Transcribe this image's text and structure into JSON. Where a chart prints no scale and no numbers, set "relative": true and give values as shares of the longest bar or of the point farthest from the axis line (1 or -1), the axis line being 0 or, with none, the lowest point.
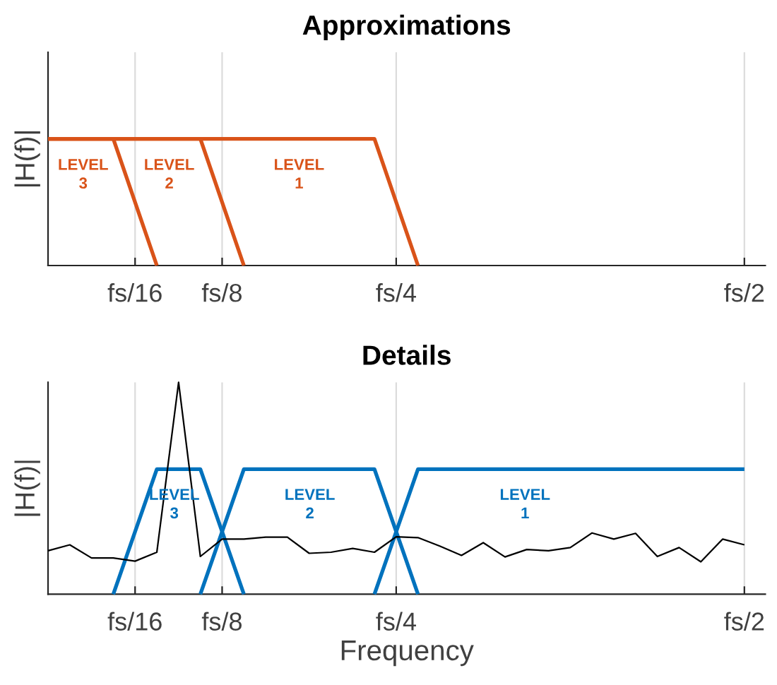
{
  "chart_data": [
    {
      "type": "line",
      "title": "Approximations",
      "ylabel": "|H(f)|",
      "relative": true,
      "categories": [
        null,
        null,
        null,
        null,
        "fs/16",
        null,
        null,
        null,
        "fs/8",
        null,
        null,
        null,
        null,
        null,
        null,
        null,
        "fs/4",
        null,
        null,
        null,
        null,
        null,
        null,
        null,
        null,
        null,
        null,
        null,
        null,
        null,
        null,
        null,
        "fs/2"
      ],
      "grid": "x",
      "tick_labels": "x",
      "line_style": "solid",
      "series": [
        {
          "color": "#d95319",
          "values": [
            1,
            1,
            1,
            1,
            0.5,
            0,
            null,
            null,
            null,
            null,
            null,
            null,
            null,
            null,
            null,
            null,
            null,
            null,
            null,
            null,
            null,
            null,
            null,
            null,
            null,
            null,
            null,
            null,
            null,
            null,
            null,
            null,
            null
          ]
        },
        {
          "color": "#d95319",
          "values": [
            1,
            1,
            1,
            1,
            1,
            1,
            1,
            1,
            0.5,
            0,
            null,
            null,
            null,
            null,
            null,
            null,
            null,
            null,
            null,
            null,
            null,
            null,
            null,
            null,
            null,
            null,
            null,
            null,
            null,
            null,
            null,
            null,
            null
          ]
        },
        {
          "color": "#d95319",
          "values": [
            1,
            1,
            1,
            1,
            1,
            1,
            1,
            1,
            1,
            1,
            1,
            1,
            1,
            1,
            1,
            1,
            0.5,
            0,
            null,
            null,
            null,
            null,
            null,
            null,
            null,
            null,
            null,
            null,
            null,
            null,
            null,
            null,
            null
          ]
        }
      ],
      "annotations": [
        "LEVEL 3",
        "LEVEL 2",
        "LEVEL 1"
      ]
    },
    {
      "type": "line",
      "title": "Details",
      "xlabel": "Frequency",
      "ylabel": "|H(f)|",
      "relative": true,
      "categories": [
        null,
        null,
        null,
        null,
        "fs/16",
        null,
        null,
        null,
        "fs/8",
        null,
        null,
        null,
        null,
        null,
        null,
        null,
        "fs/4",
        null,
        null,
        null,
        null,
        null,
        null,
        null,
        null,
        null,
        null,
        null,
        null,
        null,
        null,
        null,
        "fs/2"
      ],
      "grid": "x",
      "tick_labels": "x",
      "line_style": "solid",
      "series": [
        {
          "color": "#0072bd",
          "values": [
            null,
            null,
            null,
            0,
            0.295,
            0.59,
            0.59,
            0.59,
            0.295,
            0,
            null,
            null,
            null,
            null,
            null,
            null,
            null,
            null,
            null,
            null,
            null,
            null,
            null,
            null,
            null,
            null,
            null,
            null,
            null,
            null,
            null,
            null,
            null
          ]
        },
        {
          "color": "#0072bd",
          "values": [
            null,
            null,
            null,
            null,
            null,
            null,
            null,
            0,
            0.295,
            0.59,
            0.59,
            0.59,
            0.59,
            0.59,
            0.59,
            0.59,
            0.295,
            0,
            null,
            null,
            null,
            null,
            null,
            null,
            null,
            null,
            null,
            null,
            null,
            null,
            null,
            null,
            null
          ]
        },
        {
          "color": "#0072bd",
          "values": [
            null,
            null,
            null,
            null,
            null,
            null,
            null,
            null,
            null,
            null,
            null,
            null,
            null,
            null,
            null,
            0,
            0.295,
            0.59,
            0.59,
            0.59,
            0.59,
            0.59,
            0.59,
            0.59,
            0.59,
            0.59,
            0.59,
            0.59,
            0.59,
            0.59,
            0.59,
            0.59,
            0.59
          ]
        },
        {
          "color": "#000000",
          "values": [
            0.205,
            0.233,
            0.171,
            0.171,
            0.156,
            0.198,
            1,
            0.178,
            0.26,
            0.26,
            0.269,
            0.269,
            0.193,
            0.198,
            0.216,
            0.198,
            0.271,
            0.267,
            0.227,
            0.183,
            0.243,
            0.176,
            0.211,
            0.205,
            0.22,
            0.289,
            0.26,
            0.287,
            0.178,
            0.22,
            0.153,
            0.26,
            0.233
          ]
        }
      ],
      "annotations": [
        "LEVEL 3",
        "LEVEL 2",
        "LEVEL 1"
      ]
    }
  ]
}
